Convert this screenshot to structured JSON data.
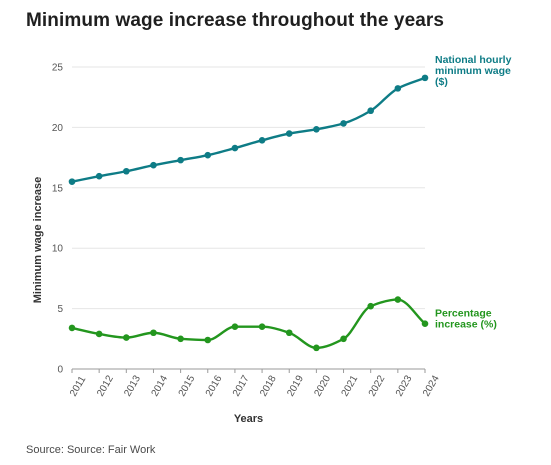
{
  "title": "Minimum wage increase throughout the years",
  "source": "Source: Source: Fair Work",
  "chart_data": {
    "type": "line",
    "title": "Minimum wage increase throughout the years",
    "xlabel": "Years",
    "ylabel": "Minimum wage increase",
    "x": [
      "2011",
      "2012",
      "2013",
      "2014",
      "2015",
      "2016",
      "2017",
      "2018",
      "2019",
      "2020",
      "2021",
      "2022",
      "2023",
      "2024"
    ],
    "ylim": [
      0,
      25
    ],
    "yticks": [
      0,
      5,
      10,
      15,
      20,
      25
    ],
    "grid": true,
    "legend": "direct labels at line ends (right)",
    "series": [
      {
        "name": "National hourly minimum wage ($)",
        "label_lines": [
          "National hourly",
          "minimum wage",
          "($)"
        ],
        "color": "#0e7c86",
        "values": [
          15.51,
          15.96,
          16.37,
          16.87,
          17.29,
          17.7,
          18.29,
          18.93,
          19.49,
          19.84,
          20.33,
          21.38,
          23.23,
          24.1
        ]
      },
      {
        "name": "Percentage increase (%)",
        "label_lines": [
          "Percentage",
          "increase (%)"
        ],
        "color": "#23961e",
        "values": [
          3.4,
          2.9,
          2.6,
          3.0,
          2.5,
          2.4,
          3.5,
          3.5,
          3.0,
          1.75,
          2.5,
          5.2,
          5.75,
          3.75
        ]
      }
    ]
  }
}
